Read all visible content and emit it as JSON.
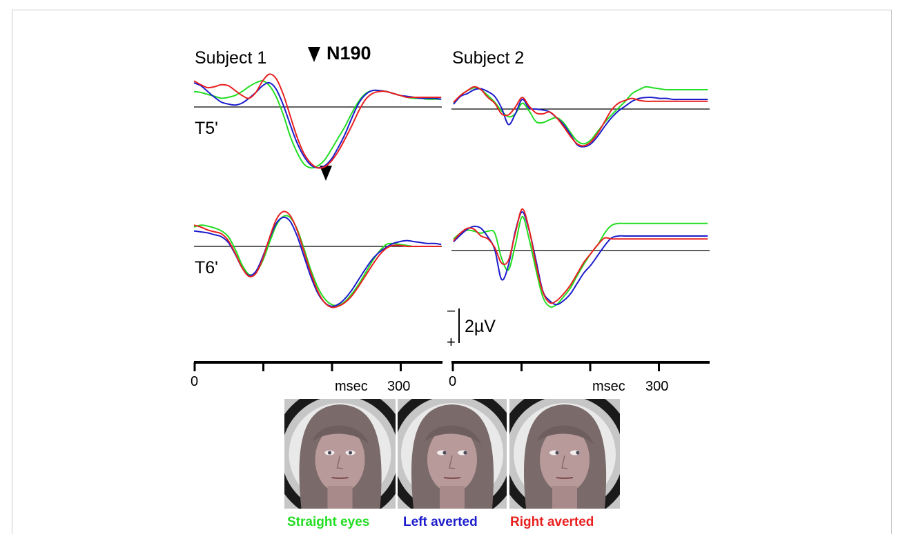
{
  "chart_data": {
    "type": "line",
    "time_unit": "msec",
    "x": [
      -20,
      -10,
      0,
      10,
      20,
      30,
      40,
      50,
      60,
      70,
      80,
      90,
      100,
      110,
      120,
      130,
      140,
      150,
      160,
      170,
      180,
      190,
      200,
      210,
      220,
      230,
      240,
      250,
      260,
      270,
      280,
      290,
      300,
      310,
      320,
      330,
      340,
      350,
      360,
      370
    ],
    "x_ticks": [
      0,
      100,
      200,
      300
    ],
    "x_tick_labels": [
      "0",
      "300"
    ],
    "x_axis_label": "msec",
    "scale_bar": {
      "label": "2µV",
      "negative_sign": "–",
      "positive_sign": "+"
    },
    "peak_label": "N190",
    "panels": [
      {
        "subject": "Subject 1",
        "channel": "T5'",
        "series": [
          {
            "color": "#22dd22",
            "values": [
              1.0,
              1.4,
              1.6,
              1.5,
              1.3,
              1.1,
              0.9,
              1.0,
              1.2,
              1.6,
              2.1,
              2.5,
              2.7,
              2.2,
              1.0,
              -0.8,
              -3.0,
              -4.7,
              -5.9,
              -6.3,
              -6.1,
              -5.5,
              -4.4,
              -3.2,
              -2.0,
              -0.6,
              0.6,
              1.4,
              1.7,
              1.7,
              1.6,
              1.4,
              1.2,
              1.0,
              0.9,
              0.9,
              0.8,
              0.8,
              0.8,
              0.7
            ]
          },
          {
            "color": "#1c1ccc",
            "values": [
              1.4,
              2.2,
              2.5,
              2.2,
              1.6,
              1.0,
              0.5,
              0.3,
              0.2,
              0.4,
              0.9,
              1.5,
              2.2,
              2.5,
              1.8,
              0.2,
              -1.8,
              -3.7,
              -5.1,
              -6.0,
              -6.3,
              -6.1,
              -5.4,
              -4.2,
              -2.8,
              -1.1,
              0.4,
              1.3,
              1.7,
              1.7,
              1.6,
              1.4,
              1.2,
              1.1,
              1.0,
              0.9,
              0.9,
              0.9,
              0.8,
              0.8
            ]
          },
          {
            "color": "#e82020",
            "values": [
              1.3,
              2.4,
              2.7,
              2.3,
              2.0,
              2.1,
              2.3,
              2.2,
              1.7,
              1.2,
              0.9,
              1.5,
              2.7,
              3.4,
              2.9,
              1.3,
              -0.9,
              -3.1,
              -4.8,
              -5.8,
              -6.3,
              -6.2,
              -5.6,
              -4.6,
              -3.3,
              -1.9,
              -0.4,
              0.8,
              1.4,
              1.6,
              1.6,
              1.4,
              1.2,
              1.0,
              1.0,
              1.0,
              1.0,
              1.0,
              1.0,
              1.0
            ]
          }
        ]
      },
      {
        "subject": "Subject 1",
        "channel": "T6'",
        "series": [
          {
            "color": "#22dd22",
            "values": [
              0.8,
              1.6,
              2.0,
              2.2,
              2.1,
              1.9,
              1.6,
              1.0,
              -0.3,
              -1.9,
              -2.9,
              -2.7,
              -1.5,
              0.4,
              2.2,
              3.1,
              3.0,
              1.8,
              -0.2,
              -2.4,
              -4.2,
              -5.4,
              -6.0,
              -6.1,
              -5.7,
              -4.9,
              -3.9,
              -2.7,
              -1.5,
              -0.5,
              0.2,
              0.3,
              0.2,
              0.1,
              0.0,
              0.0,
              0.0,
              0.0,
              0.0,
              0.0
            ]
          },
          {
            "color": "#1c1ccc",
            "values": [
              1.4,
              1.7,
              1.6,
              1.5,
              1.4,
              1.2,
              1.0,
              0.4,
              -0.8,
              -2.2,
              -3.0,
              -2.6,
              -1.1,
              0.8,
              2.4,
              3.0,
              2.6,
              1.1,
              -1.0,
              -3.1,
              -4.8,
              -5.8,
              -6.2,
              -6.0,
              -5.4,
              -4.5,
              -3.4,
              -2.3,
              -1.3,
              -0.6,
              -0.1,
              0.3,
              0.5,
              0.6,
              0.5,
              0.4,
              0.3,
              0.3,
              0.2,
              0.2
            ]
          },
          {
            "color": "#e82020",
            "values": [
              1.3,
              2.0,
              2.2,
              2.0,
              1.7,
              1.5,
              1.3,
              0.6,
              -0.7,
              -2.2,
              -3.1,
              -2.8,
              -1.3,
              0.9,
              2.8,
              3.6,
              3.2,
              1.7,
              -0.5,
              -2.7,
              -4.6,
              -5.8,
              -6.3,
              -6.2,
              -5.8,
              -5.1,
              -4.1,
              -3.0,
              -1.9,
              -0.9,
              -0.2,
              0.1,
              0.1,
              0.0,
              0.0,
              0.0,
              0.0,
              0.0,
              0.0,
              0.0
            ]
          }
        ]
      },
      {
        "subject": "Subject 2",
        "channel": "",
        "series": [
          {
            "color": "#22dd22",
            "values": [
              0.2,
              0.1,
              0.6,
              1.4,
              1.9,
              2.2,
              2.0,
              1.4,
              0.7,
              -0.2,
              -0.8,
              -0.5,
              0.6,
              -0.2,
              -1.3,
              -1.4,
              -1.1,
              -0.9,
              -1.4,
              -2.4,
              -3.3,
              -3.6,
              -3.2,
              -2.3,
              -1.4,
              -0.6,
              0.1,
              0.8,
              1.6,
              2.0,
              2.3,
              2.2,
              2.1,
              2.0,
              2.0,
              2.0,
              2.0,
              2.0,
              2.0,
              2.0
            ]
          },
          {
            "color": "#1c1ccc",
            "values": [
              0.3,
              -0.1,
              0.5,
              1.3,
              1.6,
              2.0,
              2.1,
              1.8,
              1.3,
              0.1,
              -1.6,
              -0.5,
              1.0,
              0.1,
              0.0,
              -0.1,
              -0.3,
              -0.9,
              -1.6,
              -2.6,
              -3.7,
              -3.9,
              -3.6,
              -2.8,
              -1.8,
              -0.9,
              -0.2,
              0.3,
              0.8,
              1.1,
              1.2,
              1.2,
              1.1,
              1.1,
              1.0,
              1.0,
              1.0,
              1.0,
              1.0,
              1.0
            ]
          },
          {
            "color": "#e82020",
            "values": [
              0.4,
              -0.1,
              0.7,
              1.4,
              1.9,
              2.3,
              2.0,
              1.2,
              0.6,
              -0.5,
              -0.6,
              0.2,
              1.2,
              0.3,
              -0.4,
              -0.5,
              -0.3,
              -0.9,
              -1.8,
              -2.8,
              -3.6,
              -3.8,
              -3.4,
              -2.5,
              -1.3,
              -0.1,
              0.6,
              0.9,
              1.1,
              0.9,
              0.8,
              0.8,
              0.8,
              0.8,
              0.8,
              0.8,
              0.8,
              0.8,
              0.8,
              0.8
            ]
          }
        ]
      },
      {
        "subject": "Subject 2",
        "channel": "",
        "series": [
          {
            "color": "#22dd22",
            "values": [
              -0.6,
              0.4,
              1.2,
              1.8,
              2.1,
              2.0,
              1.8,
              2.0,
              1.8,
              -0.8,
              -2.0,
              0.6,
              3.5,
              1.2,
              -2.0,
              -4.8,
              -5.8,
              -5.6,
              -4.8,
              -3.9,
              -2.6,
              -1.4,
              -0.3,
              0.6,
              1.8,
              2.6,
              2.8,
              2.8,
              2.8,
              2.8,
              2.8,
              2.8,
              2.8,
              2.8,
              2.8,
              2.8,
              2.8,
              2.8,
              2.8,
              2.8
            ]
          },
          {
            "color": "#1c1ccc",
            "values": [
              0.3,
              0.1,
              0.9,
              1.6,
              2.2,
              2.5,
              2.3,
              1.4,
              0.1,
              -3.0,
              -1.5,
              2.0,
              4.0,
              2.1,
              -1.0,
              -4.2,
              -5.2,
              -5.6,
              -5.2,
              -4.5,
              -3.4,
              -2.3,
              -1.5,
              -0.5,
              0.5,
              1.3,
              1.5,
              1.5,
              1.5,
              1.5,
              1.5,
              1.5,
              1.5,
              1.5,
              1.5,
              1.5,
              1.5,
              1.5,
              1.5,
              1.5
            ]
          },
          {
            "color": "#e82020",
            "values": [
              0.1,
              0.0,
              1.0,
              1.8,
              2.3,
              2.2,
              1.5,
              1.2,
              0.3,
              -1.3,
              -1.0,
              1.8,
              4.3,
              2.2,
              -1.4,
              -4.3,
              -5.4,
              -5.2,
              -4.5,
              -3.6,
              -2.4,
              -1.2,
              -0.3,
              0.6,
              1.3,
              1.2,
              1.2,
              1.2,
              1.2,
              1.2,
              1.2,
              1.2,
              1.2,
              1.2,
              1.2,
              1.2,
              1.2,
              1.2,
              1.2,
              1.2
            ]
          }
        ]
      }
    ]
  },
  "legend": [
    {
      "label": "Straight eyes",
      "color": "#22dd22"
    },
    {
      "label": "Left averted",
      "color": "#1c1ccc"
    },
    {
      "label": "Right averted",
      "color": "#e82020"
    }
  ],
  "face_images": [
    {
      "name": "face-straight-eyes",
      "gaze": "straight"
    },
    {
      "name": "face-left-averted",
      "gaze": "left"
    },
    {
      "name": "face-right-averted",
      "gaze": "right"
    }
  ]
}
